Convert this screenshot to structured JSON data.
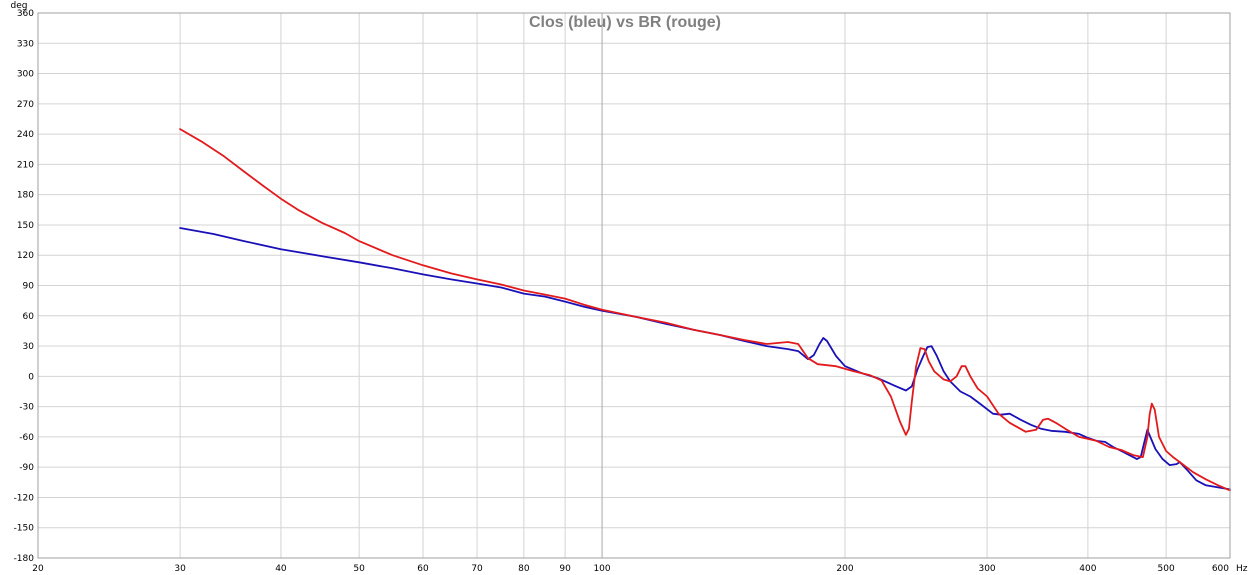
{
  "chart_data": {
    "type": "line",
    "title": "Clos (bleu) vs BR (rouge)",
    "y_unit": "deg",
    "x_unit": "Hz",
    "x_scale": "log",
    "xlim": [
      20,
      600
    ],
    "ylim": [
      -180,
      360
    ],
    "grid": true,
    "x_ticks": [
      {
        "value": 20,
        "label": "20"
      },
      {
        "value": 30,
        "label": "30"
      },
      {
        "value": 40,
        "label": "40"
      },
      {
        "value": 50,
        "label": "50"
      },
      {
        "value": 60,
        "label": "60"
      },
      {
        "value": 70,
        "label": "70"
      },
      {
        "value": 80,
        "label": "80"
      },
      {
        "value": 90,
        "label": "90"
      },
      {
        "value": 100,
        "label": "100"
      },
      {
        "value": 200,
        "label": "200"
      },
      {
        "value": 300,
        "label": "300"
      },
      {
        "value": 400,
        "label": "400"
      },
      {
        "value": 500,
        "label": "500"
      },
      {
        "value": 600,
        "label": "600"
      }
    ],
    "y_ticks": [
      360,
      330,
      300,
      270,
      240,
      210,
      180,
      150,
      120,
      90,
      60,
      30,
      0,
      -30,
      -60,
      -90,
      -120,
      -150,
      -180
    ],
    "series": [
      {
        "color": "#1a10b8",
        "points": [
          [
            30,
            147
          ],
          [
            33,
            141
          ],
          [
            36,
            134
          ],
          [
            40,
            126
          ],
          [
            45,
            119
          ],
          [
            50,
            113
          ],
          [
            55,
            107
          ],
          [
            60,
            101
          ],
          [
            65,
            96
          ],
          [
            70,
            92
          ],
          [
            75,
            88
          ],
          [
            80,
            82
          ],
          [
            85,
            79
          ],
          [
            90,
            74
          ],
          [
            95,
            69
          ],
          [
            100,
            65
          ],
          [
            110,
            59
          ],
          [
            120,
            52
          ],
          [
            130,
            46
          ],
          [
            140,
            41
          ],
          [
            150,
            35
          ],
          [
            160,
            30
          ],
          [
            170,
            27
          ],
          [
            175,
            25
          ],
          [
            180,
            17
          ],
          [
            183,
            21
          ],
          [
            186,
            32
          ],
          [
            188,
            38
          ],
          [
            190,
            35
          ],
          [
            195,
            20
          ],
          [
            200,
            10
          ],
          [
            210,
            3
          ],
          [
            220,
            -2
          ],
          [
            230,
            -9
          ],
          [
            238,
            -14
          ],
          [
            242,
            -10
          ],
          [
            246,
            7
          ],
          [
            250,
            20
          ],
          [
            253,
            29
          ],
          [
            256,
            30
          ],
          [
            260,
            20
          ],
          [
            265,
            5
          ],
          [
            270,
            -5
          ],
          [
            278,
            -15
          ],
          [
            286,
            -20
          ],
          [
            295,
            -28
          ],
          [
            305,
            -37
          ],
          [
            312,
            -38
          ],
          [
            320,
            -37
          ],
          [
            330,
            -43
          ],
          [
            340,
            -48
          ],
          [
            350,
            -52
          ],
          [
            360,
            -54
          ],
          [
            375,
            -55
          ],
          [
            390,
            -57
          ],
          [
            400,
            -61
          ],
          [
            410,
            -64
          ],
          [
            420,
            -65
          ],
          [
            430,
            -70
          ],
          [
            440,
            -74
          ],
          [
            450,
            -78
          ],
          [
            460,
            -82
          ],
          [
            465,
            -80
          ],
          [
            470,
            -65
          ],
          [
            474,
            -53
          ],
          [
            478,
            -60
          ],
          [
            485,
            -72
          ],
          [
            495,
            -82
          ],
          [
            505,
            -88
          ],
          [
            515,
            -87
          ],
          [
            520,
            -85
          ],
          [
            530,
            -92
          ],
          [
            545,
            -103
          ],
          [
            560,
            -108
          ],
          [
            580,
            -110
          ],
          [
            600,
            -112
          ]
        ]
      },
      {
        "color": "#e31a1c",
        "points": [
          [
            30,
            245
          ],
          [
            32,
            232
          ],
          [
            34,
            218
          ],
          [
            36,
            203
          ],
          [
            38,
            189
          ],
          [
            40,
            176
          ],
          [
            42,
            165
          ],
          [
            45,
            152
          ],
          [
            48,
            142
          ],
          [
            50,
            134
          ],
          [
            55,
            120
          ],
          [
            60,
            110
          ],
          [
            65,
            102
          ],
          [
            70,
            96
          ],
          [
            75,
            91
          ],
          [
            80,
            85
          ],
          [
            85,
            81
          ],
          [
            90,
            77
          ],
          [
            95,
            71
          ],
          [
            100,
            66
          ],
          [
            110,
            59
          ],
          [
            120,
            53
          ],
          [
            130,
            46
          ],
          [
            140,
            41
          ],
          [
            150,
            36
          ],
          [
            160,
            32
          ],
          [
            170,
            34
          ],
          [
            175,
            32
          ],
          [
            180,
            18
          ],
          [
            185,
            12
          ],
          [
            195,
            10
          ],
          [
            205,
            5
          ],
          [
            215,
            1
          ],
          [
            222,
            -4
          ],
          [
            228,
            -20
          ],
          [
            234,
            -45
          ],
          [
            238,
            -58
          ],
          [
            240,
            -52
          ],
          [
            242,
            -25
          ],
          [
            245,
            10
          ],
          [
            248,
            28
          ],
          [
            251,
            27
          ],
          [
            254,
            15
          ],
          [
            258,
            5
          ],
          [
            265,
            -3
          ],
          [
            270,
            -5
          ],
          [
            275,
            0
          ],
          [
            279,
            10
          ],
          [
            282,
            10
          ],
          [
            286,
            0
          ],
          [
            292,
            -12
          ],
          [
            300,
            -20
          ],
          [
            310,
            -37
          ],
          [
            320,
            -46
          ],
          [
            335,
            -55
          ],
          [
            345,
            -53
          ],
          [
            352,
            -43
          ],
          [
            357,
            -42
          ],
          [
            365,
            -46
          ],
          [
            375,
            -52
          ],
          [
            390,
            -60
          ],
          [
            400,
            -62
          ],
          [
            410,
            -64
          ],
          [
            425,
            -70
          ],
          [
            440,
            -73
          ],
          [
            455,
            -78
          ],
          [
            468,
            -80
          ],
          [
            474,
            -60
          ],
          [
            477,
            -38
          ],
          [
            480,
            -27
          ],
          [
            484,
            -33
          ],
          [
            490,
            -60
          ],
          [
            500,
            -74
          ],
          [
            510,
            -80
          ],
          [
            520,
            -85
          ],
          [
            540,
            -95
          ],
          [
            560,
            -102
          ],
          [
            580,
            -108
          ],
          [
            600,
            -113
          ]
        ]
      }
    ]
  }
}
